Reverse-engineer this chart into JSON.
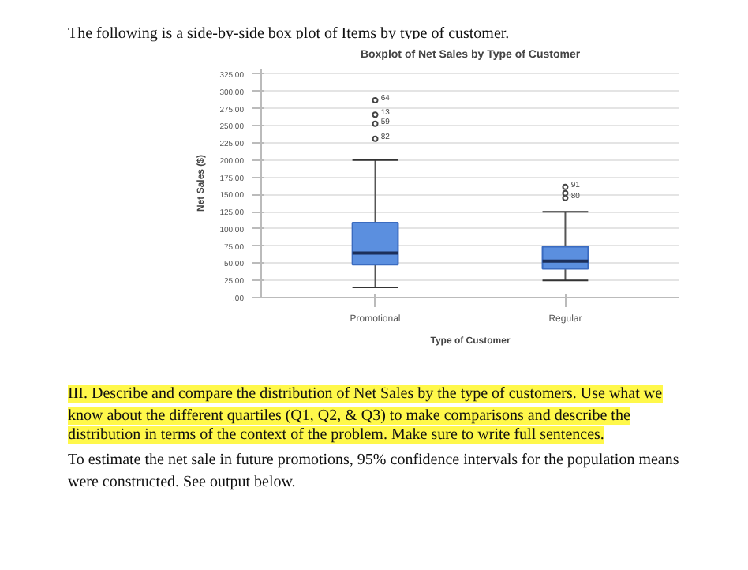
{
  "chart_data": {
    "type": "box",
    "title": "Boxplot of Net Sales by Type of Customer",
    "xlabel": "Type of Customer",
    "ylabel": "Net Sales ($)",
    "categories": [
      "Promotional",
      "Regular"
    ],
    "color": "#5b8fdf",
    "boxes": [
      {
        "low": 15,
        "q1": 48,
        "median": 65,
        "q3": 109,
        "high": 200
      },
      {
        "low": 25,
        "q1": 42,
        "median": 53,
        "q3": 74,
        "high": 125
      }
    ],
    "series": [
      {
        "type": "scatter",
        "marker": "circle",
        "color": "#444444",
        "x": [
          "Promotional",
          "Promotional",
          "Promotional",
          "Promotional",
          "Regular",
          "Regular",
          "Regular"
        ],
        "values": [
          287,
          266,
          253,
          231,
          161,
          152,
          145
        ]
      }
    ],
    "ylim": [
      0,
      333
    ],
    "yticks": [
      {
        "value": 0,
        "label": ".00"
      },
      {
        "value": 25,
        "label": "25.00"
      },
      {
        "value": 50,
        "label": "50.00"
      },
      {
        "value": 75,
        "label": "75.00"
      },
      {
        "value": 100,
        "label": "100.00"
      },
      {
        "value": 125,
        "label": "125.00"
      },
      {
        "value": 150,
        "label": "150.00"
      },
      {
        "value": 175,
        "label": "175.00"
      },
      {
        "value": 200,
        "label": "200.00"
      },
      {
        "value": 225,
        "label": "225.00"
      },
      {
        "value": 250,
        "label": "250.00"
      },
      {
        "value": 275,
        "label": "275.00"
      },
      {
        "value": 300,
        "label": "300.00"
      },
      {
        "value": 325,
        "label": "325.00"
      }
    ],
    "grid": "y",
    "annotations": [
      "The following is a side-by-side box plot of Items by type of customer.",
      "III.   Describe and compare the distribution of Net Sales by the type of customers. Use what we",
      "know about the different quartiles (Q1, Q2, & Q3) to make comparisons and describe the",
      "distribution in terms of the context of the problem. Make sure to write full sentences.",
      "To estimate the net sale in future promotions, 95% confidence intervals for the population means",
      "were constructed.  See output below.",
      {
        "text": "64",
        "x": "Promotional",
        "y": 287
      },
      {
        "text": "13",
        "x": "Promotional",
        "y": 266
      },
      {
        "text": "59",
        "x": "Promotional",
        "y": 253
      },
      {
        "text": "82",
        "x": "Promotional",
        "y": 231
      },
      {
        "text": "91",
        "x": "Regular",
        "y": 161
      },
      {
        "text": "80",
        "x": "Regular",
        "y": 145
      }
    ]
  }
}
